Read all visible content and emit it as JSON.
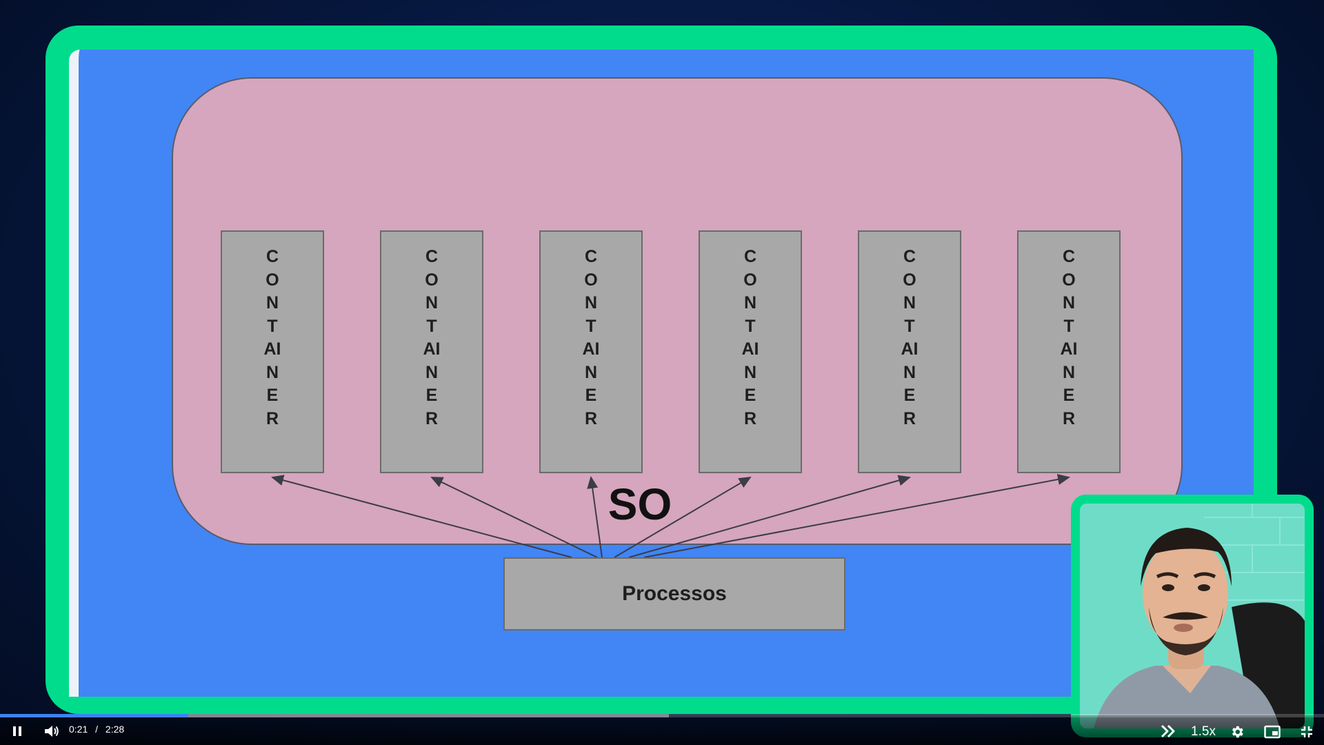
{
  "slide": {
    "os_label": "SO",
    "processes_label": "Processos",
    "containers": [
      {
        "label": "CONTAINER"
      },
      {
        "label": "CONTAINER"
      },
      {
        "label": "CONTAINER"
      },
      {
        "label": "CONTAINER"
      },
      {
        "label": "CONTAINER"
      },
      {
        "label": "CONTAINER"
      }
    ]
  },
  "player": {
    "current_time": "0:21",
    "separator": "/",
    "duration": "2:28",
    "playback_speed": "1.5x",
    "progress_fraction": 0.142,
    "buffered_fraction": 0.505,
    "state": "playing"
  },
  "icons": {
    "play_pause": "pause-icon",
    "volume": "volume-icon",
    "skip": "skip-forward-icon",
    "settings": "gear-icon",
    "pip": "picture-in-picture-icon",
    "fullscreen": "exit-fullscreen-icon"
  },
  "colors": {
    "frame_accent": "#00dc8c",
    "slide_background": "#4285f4",
    "os_bubble": "#d5a6bd",
    "box_fill": "#a8a8a8",
    "progress_played": "#3d82f5"
  }
}
